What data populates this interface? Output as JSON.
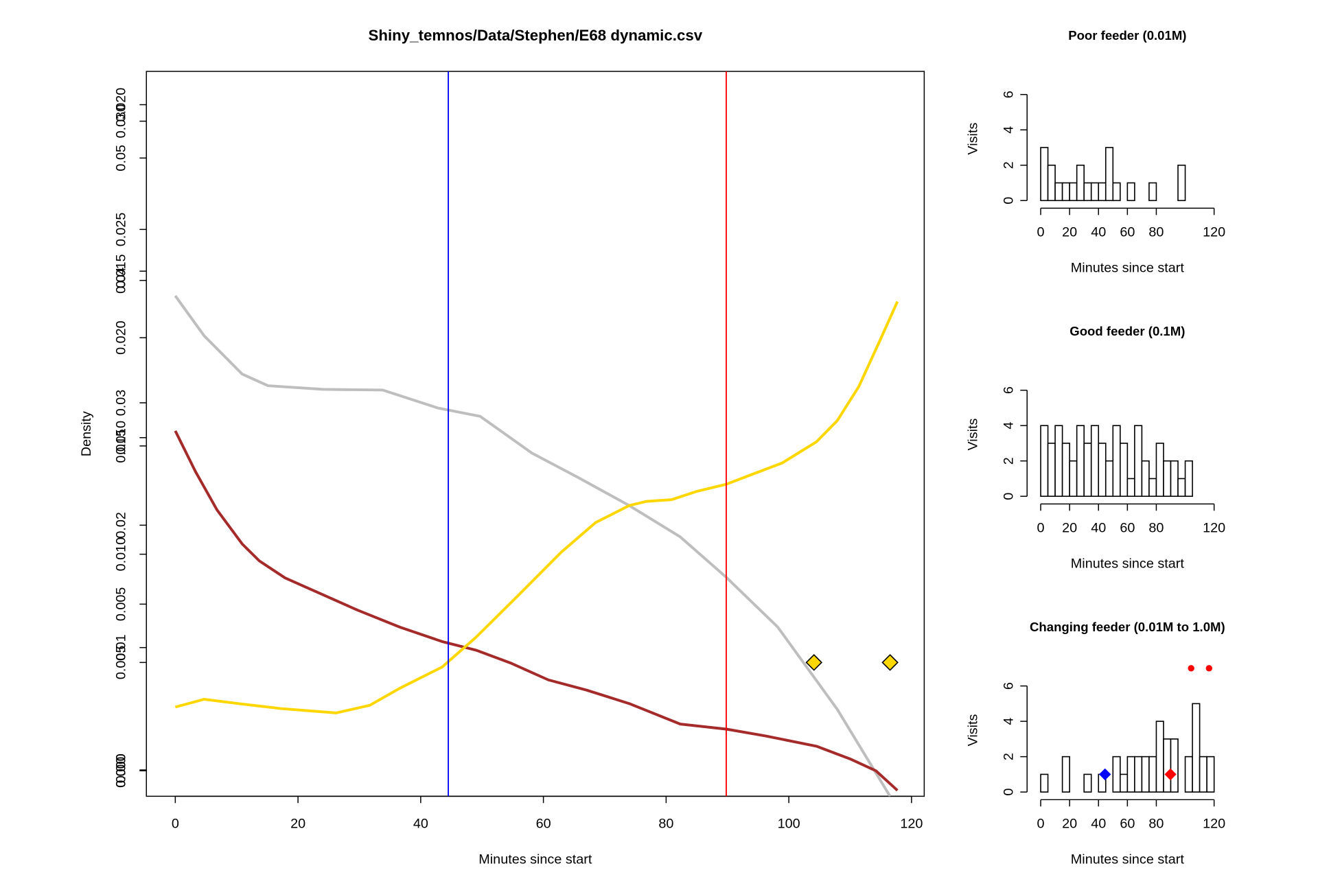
{
  "chart_data": [
    {
      "type": "line",
      "title": "Shiny_temnos/Data/Stephen/E68 dynamic.csv",
      "xlabel": "Minutes since start",
      "ylabel": "Density",
      "xlim": [
        -4.71,
        122.07
      ],
      "xticks": [
        0,
        20,
        40,
        60,
        80,
        100,
        120
      ],
      "ylim": [
        -0.00215,
        0.05708
      ],
      "yticks": [
        {
          "value": 0,
          "label": "0.00"
        },
        {
          "value": 0.01,
          "label": "0.01"
        },
        {
          "value": 0.02,
          "label": "0.02"
        },
        {
          "value": 0.03,
          "label": "0.03"
        },
        {
          "value": 0.04,
          "label": "0.04"
        },
        {
          "value": 0.05,
          "label": "0.05"
        }
      ],
      "y2lim": [
        -0.00118,
        0.0323
      ],
      "y2ticks": [
        {
          "value": 0,
          "label": "0.000"
        },
        {
          "value": 0.005,
          "label": "0.005"
        },
        {
          "value": 0.01,
          "label": "0.010"
        },
        {
          "value": 0.015,
          "label": "0.015"
        },
        {
          "value": 0.02,
          "label": "0.020"
        },
        {
          "value": 0.025,
          "label": "0.025"
        },
        {
          "value": 0.03,
          "label": "0.030"
        }
      ],
      "y3lim": [
        -0.00077,
        0.021
      ],
      "y3ticks": [
        {
          "value": 0,
          "label": "0.000"
        },
        {
          "value": 0.005,
          "label": "0.005"
        },
        {
          "value": 0.01,
          "label": "0.010"
        },
        {
          "value": 0.015,
          "label": "0.015"
        },
        {
          "value": 0.02,
          "label": "0.020"
        }
      ],
      "series": [
        {
          "color": "#bebebe",
          "axis": "y3",
          "x": [
            0,
            4.7,
            10.9,
            15.1,
            24.1,
            33.8,
            42.8,
            49.7,
            58.1,
            65.7,
            74.0,
            82.3,
            89.9,
            98.2,
            107.9,
            116.5
          ],
          "values": [
            0.01426,
            0.01306,
            0.01191,
            0.01156,
            0.01145,
            0.01143,
            0.01089,
            0.01064,
            0.00954,
            0.0088,
            0.00796,
            0.00702,
            0.00579,
            0.00431,
            0.00184,
            -0.00077
          ]
        },
        {
          "color": "#a52a2a",
          "axis": "y",
          "x": [
            0,
            3.3,
            6.8,
            10.9,
            13.7,
            17.9,
            24.1,
            29.7,
            36.6,
            43.5,
            49.0,
            54.6,
            60.8,
            67.0,
            74.0,
            82.3,
            89.9,
            96.2,
            104.5,
            110.0,
            114.2,
            117.7
          ],
          "values": [
            0.02771,
            0.02437,
            0.02125,
            0.01847,
            0.01708,
            0.01569,
            0.01431,
            0.01306,
            0.01167,
            0.01049,
            0.00979,
            0.00875,
            0.00736,
            0.00653,
            0.00542,
            0.00375,
            0.00333,
            0.00278,
            0.00194,
            0.0009,
            -7e-05,
            -0.00167
          ]
        },
        {
          "color": "#ffd700",
          "axis": "y2",
          "x": [
            0,
            4.7,
            10.3,
            17.2,
            26.2,
            31.7,
            36.6,
            43.5,
            49.0,
            55.98,
            62.9,
            68.5,
            74.0,
            76.8,
            80.9,
            85.1,
            89.8,
            93.4,
            98.9,
            104.5,
            107.9,
            111.4,
            114.9,
            117.7
          ],
          "values": [
            0.00294,
            0.0033,
            0.0031,
            0.00287,
            0.00267,
            0.00302,
            0.00381,
            0.00479,
            0.00616,
            0.00812,
            0.01009,
            0.01146,
            0.01225,
            0.01244,
            0.01252,
            0.01291,
            0.01323,
            0.01362,
            0.01421,
            0.01519,
            0.01617,
            0.01774,
            0.0199,
            0.02167
          ]
        }
      ],
      "vlines": [
        {
          "x": 44.5,
          "color": "#0000ff"
        },
        {
          "x": 89.8,
          "color": "#ff0000"
        }
      ],
      "markers": [
        {
          "shape": "diamond",
          "color": "#ffd700",
          "axis": "y2",
          "x": [
            104.1,
            116.5
          ],
          "y": [
            0.005,
            0.005
          ]
        }
      ]
    },
    {
      "type": "histogram",
      "title": "Poor feeder (0.01M)",
      "xlabel": "Minutes since start",
      "ylabel": "Visits",
      "xlim": [
        0,
        120
      ],
      "xticks": [
        0,
        20,
        40,
        60,
        80,
        120
      ],
      "ylim": [
        0,
        7
      ],
      "yticks": [
        0,
        2,
        4,
        6
      ],
      "bins": [
        0,
        5,
        10,
        15,
        20,
        25,
        30,
        35,
        40,
        45,
        50,
        55,
        60,
        65,
        70,
        75,
        80,
        85,
        90,
        95,
        100
      ],
      "values": [
        3,
        2,
        1,
        1,
        1,
        2,
        1,
        1,
        1,
        3,
        1,
        0,
        1,
        0,
        0,
        1,
        0,
        0,
        0,
        2
      ]
    },
    {
      "type": "histogram",
      "title": "Good feeder (0.1M)",
      "xlabel": "Minutes since start",
      "ylabel": "Visits",
      "xlim": [
        0,
        120
      ],
      "xticks": [
        0,
        20,
        40,
        60,
        80,
        120
      ],
      "ylim": [
        0,
        7
      ],
      "yticks": [
        0,
        2,
        4,
        6
      ],
      "bins": [
        0,
        5,
        10,
        15,
        20,
        25,
        30,
        35,
        40,
        45,
        50,
        55,
        60,
        65,
        70,
        75,
        80,
        85,
        90,
        95,
        100,
        105
      ],
      "values": [
        4,
        3,
        4,
        3,
        2,
        4,
        3,
        4,
        3,
        2,
        4,
        3,
        1,
        4,
        2,
        1,
        3,
        2,
        2,
        1,
        2
      ]
    },
    {
      "type": "histogram",
      "title": "Changing feeder (0.01M to 1.0M)",
      "xlabel": "Minutes since start",
      "ylabel": "Visits",
      "xlim": [
        0,
        120
      ],
      "xticks": [
        0,
        20,
        40,
        60,
        80,
        120
      ],
      "ylim": [
        0,
        7
      ],
      "yticks": [
        0,
        2,
        4,
        6
      ],
      "bins": [
        0,
        5,
        10,
        15,
        20,
        25,
        30,
        35,
        40,
        45,
        50,
        55,
        60,
        65,
        70,
        75,
        80,
        85,
        90,
        95,
        100,
        105,
        110,
        115,
        120
      ],
      "values": [
        1,
        0,
        0,
        2,
        0,
        0,
        1,
        0,
        1,
        0,
        2,
        1,
        2,
        2,
        2,
        2,
        4,
        3,
        3,
        0,
        2,
        5,
        2,
        2
      ],
      "markers": [
        {
          "shape": "diamond",
          "color": "#0000ff",
          "x": [
            44.5
          ],
          "y": [
            1
          ]
        },
        {
          "shape": "diamond",
          "color": "#ff0000",
          "x": [
            89.8
          ],
          "y": [
            1
          ]
        },
        {
          "shape": "dot",
          "color": "#ff0000",
          "x": [
            104.1,
            116.5
          ],
          "y": [
            7,
            7
          ]
        }
      ]
    }
  ]
}
